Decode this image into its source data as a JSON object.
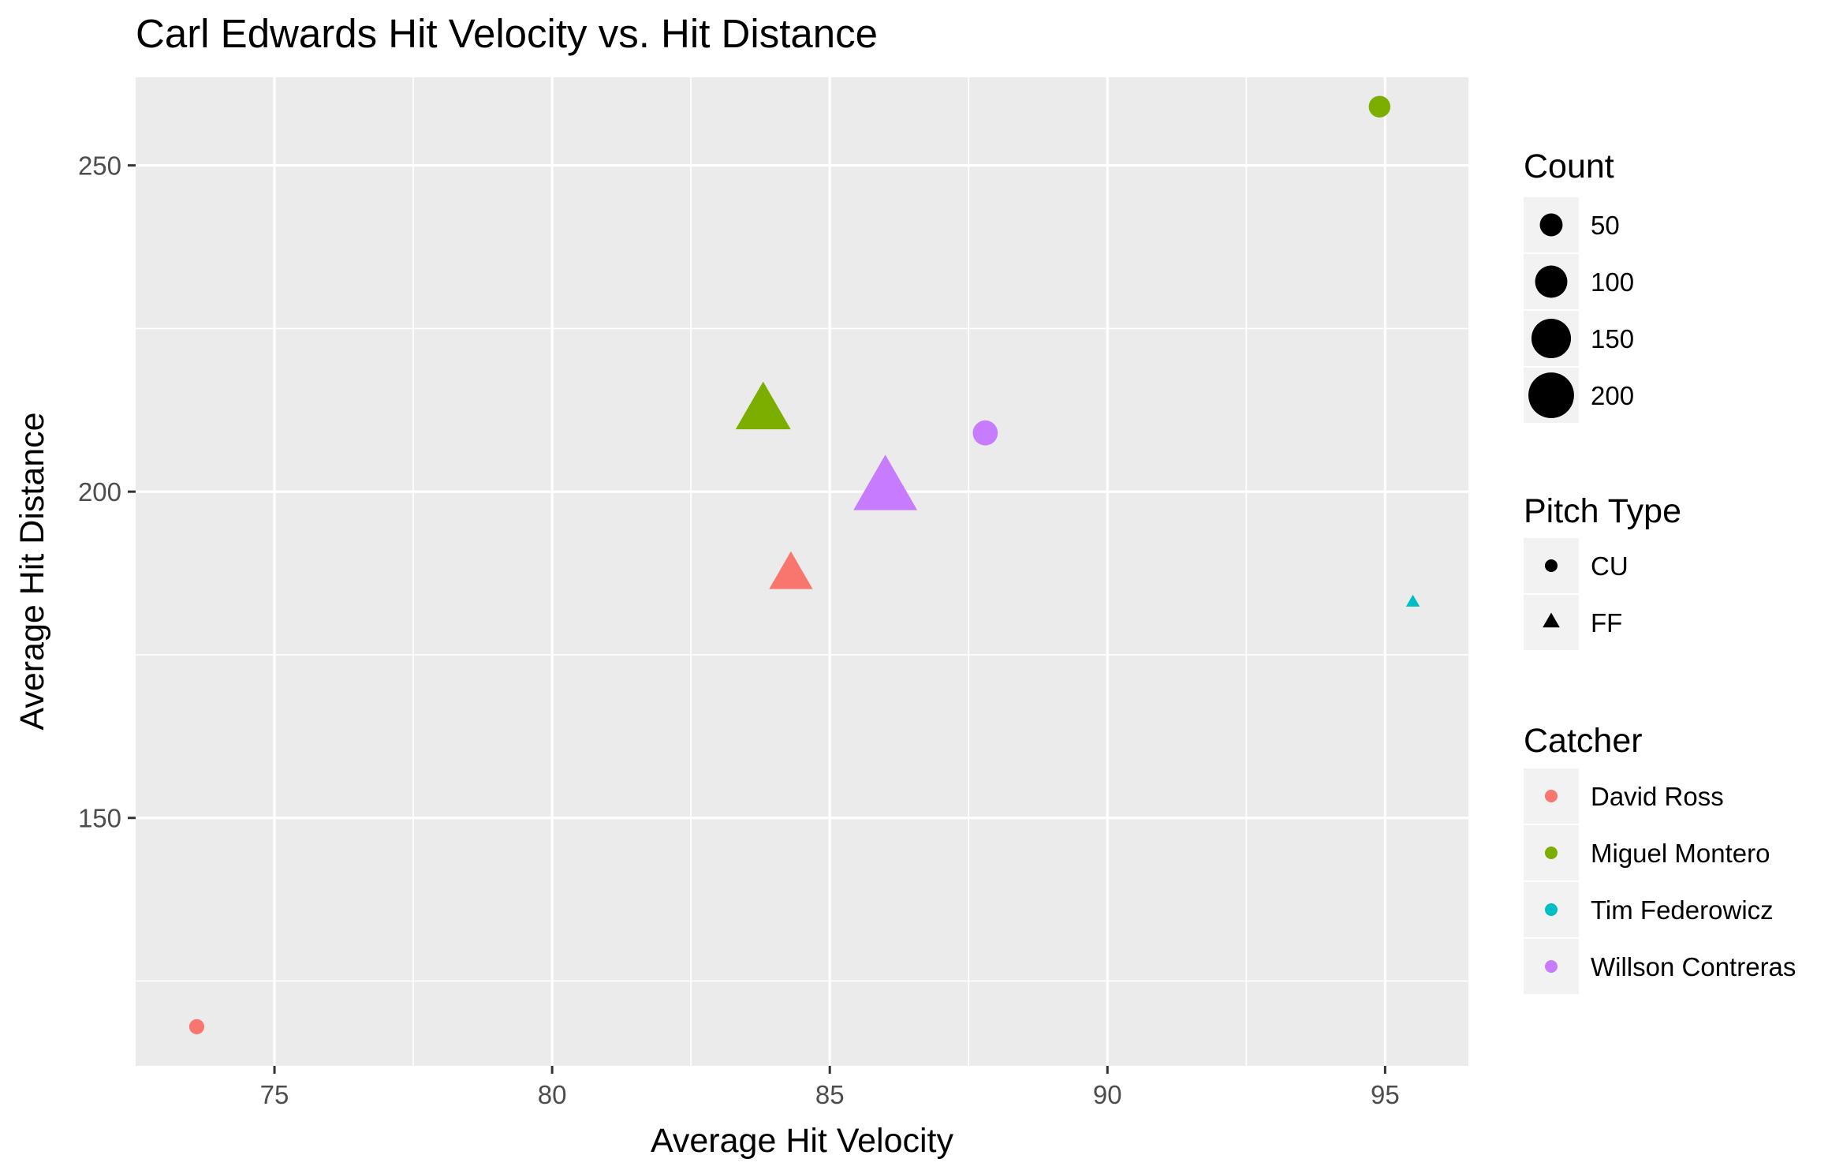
{
  "chart_data": {
    "type": "scatter",
    "title": "Carl Edwards Hit Velocity vs. Hit Distance",
    "xlabel": "Average Hit Velocity",
    "ylabel": "Average Hit Distance",
    "xlim": [
      72.5,
      96.5
    ],
    "ylim": [
      112,
      263.5
    ],
    "x_ticks": [
      75,
      80,
      85,
      90,
      95
    ],
    "x_tick_labels": [
      "75",
      "80",
      "85",
      "90",
      "95"
    ],
    "y_ticks": [
      150,
      200,
      250
    ],
    "y_tick_labels": [
      "150",
      "200",
      "250"
    ],
    "grid": true,
    "legend_position": "right",
    "points": [
      {
        "catcher": "David Ross",
        "pitch": "CU",
        "x": 73.6,
        "y": 118,
        "count": 22
      },
      {
        "catcher": "David Ross",
        "pitch": "FF",
        "x": 84.3,
        "y": 187,
        "count": 100
      },
      {
        "catcher": "Miguel Montero",
        "pitch": "CU",
        "x": 94.9,
        "y": 259,
        "count": 45
      },
      {
        "catcher": "Miguel Montero",
        "pitch": "FF",
        "x": 83.8,
        "y": 212,
        "count": 160
      },
      {
        "catcher": "Tim Federowicz",
        "pitch": "FF",
        "x": 95.5,
        "y": 183,
        "count": 10
      },
      {
        "catcher": "Willson Contreras",
        "pitch": "CU",
        "x": 87.8,
        "y": 209,
        "count": 60
      },
      {
        "catcher": "Willson Contreras",
        "pitch": "FF",
        "x": 86.0,
        "y": 200,
        "count": 215
      }
    ],
    "legends": {
      "count": {
        "title": "Count",
        "values": [
          50,
          100,
          150,
          200
        ],
        "labels": [
          "50",
          "100",
          "150",
          "200"
        ]
      },
      "pitch_type": {
        "title": "Pitch Type",
        "labels": [
          "CU",
          "FF"
        ],
        "shapes": [
          "circle",
          "triangle"
        ]
      },
      "catcher": {
        "title": "Catcher",
        "labels": [
          "David Ross",
          "Miguel Montero",
          "Tim Federowicz",
          "Willson Contreras"
        ],
        "colors": [
          "#F8766D",
          "#7CAE00",
          "#00BFC4",
          "#C77CFF"
        ]
      }
    }
  }
}
